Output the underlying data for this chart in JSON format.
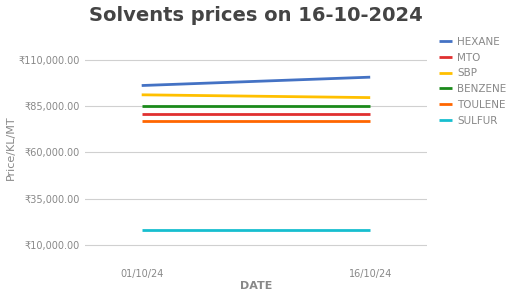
{
  "title": "Solvents prices on 16-10-2024",
  "xlabel": "DATE",
  "ylabel": "Price/KL/MT",
  "x_labels": [
    "01/10/24",
    "16/10/24"
  ],
  "x_values": [
    0,
    1
  ],
  "series": [
    {
      "name": "HEXANE",
      "color": "#4472C4",
      "values": [
        96000,
        100500
      ]
    },
    {
      "name": "MTO",
      "color": "#E03030",
      "values": [
        80500,
        80500
      ]
    },
    {
      "name": "SBP",
      "color": "#FFC000",
      "values": [
        91000,
        89500
      ]
    },
    {
      "name": "BENZENE",
      "color": "#1A8A1A",
      "values": [
        85000,
        85000
      ]
    },
    {
      "name": "TOULENE",
      "color": "#FF6600",
      "values": [
        77000,
        77000
      ]
    },
    {
      "name": "SULFUR",
      "color": "#17BECF",
      "values": [
        18000,
        18000
      ]
    }
  ],
  "ylim": [
    0,
    125000
  ],
  "yticks": [
    10000,
    35000,
    60000,
    85000,
    110000
  ],
  "background_color": "#ffffff",
  "grid_color": "#d0d0d0",
  "title_fontsize": 14,
  "axis_label_fontsize": 8,
  "tick_fontsize": 7,
  "legend_fontsize": 7.5,
  "line_width": 2.0
}
